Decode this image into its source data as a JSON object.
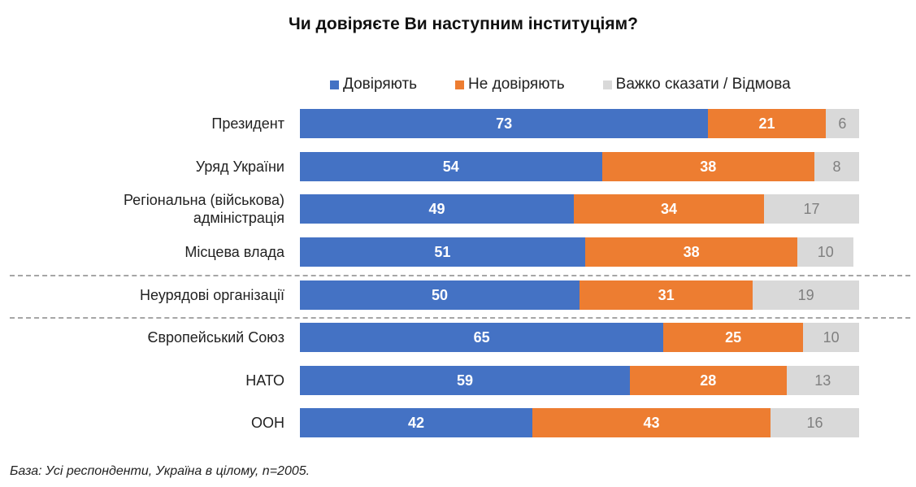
{
  "chart_data": {
    "type": "bar",
    "orientation": "horizontal",
    "stacked": true,
    "title": "Чи довіряєте Ви наступним інституціям?",
    "legend_placement": "top",
    "categories": [
      "Президент",
      "Уряд України",
      "Регіональна (військова) адміністрація",
      "Місцева влада",
      "Неурядові організації",
      "Європейський Союз",
      "НАТО",
      "ООН"
    ],
    "category_lines": [
      [
        "Президент"
      ],
      [
        "Уряд України"
      ],
      [
        "Регіональна (військова)",
        "адміністрація"
      ],
      [
        "Місцева влада"
      ],
      [
        "Неурядові організації"
      ],
      [
        "Європейський Союз"
      ],
      [
        "НАТО"
      ],
      [
        "ООН"
      ]
    ],
    "series": [
      {
        "name": "Довіряють",
        "color": "#4472c4",
        "values": [
          73,
          54,
          49,
          51,
          50,
          65,
          59,
          42
        ]
      },
      {
        "name": "Не довіряють",
        "color": "#ed7d31",
        "values": [
          21,
          38,
          34,
          38,
          31,
          25,
          28,
          43
        ]
      },
      {
        "name": "Важко сказати / Відмова",
        "color": "#d9d9d9",
        "values": [
          6,
          8,
          17,
          10,
          19,
          10,
          13,
          16
        ]
      }
    ],
    "xlim": [
      0,
      100
    ],
    "grid": false,
    "group_dividers_after": [
      3,
      4
    ]
  },
  "footer": "База: Усі респонденти, Україна в цілому, n=2005."
}
